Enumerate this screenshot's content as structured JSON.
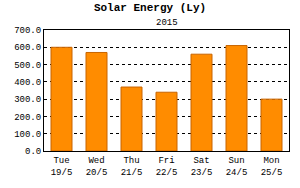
{
  "chart_data": {
    "type": "bar",
    "title": "Solar Energy (Ly)",
    "subtitle": "2015",
    "categories": [
      "Tue\n19/5",
      "Wed\n20/5",
      "Thu\n21/5",
      "Fri\n22/5",
      "Sat\n23/5",
      "Sun\n24/5",
      "Mon\n25/5"
    ],
    "values": [
      600,
      570,
      370,
      340,
      560,
      610,
      300
    ],
    "color": "#ff8c00",
    "ylim": [
      0,
      700
    ],
    "yticks": [
      {
        "value": 0,
        "label": "0.0"
      },
      {
        "value": 100,
        "label": "100.0"
      },
      {
        "value": 200,
        "label": "200.0"
      },
      {
        "value": 300,
        "label": "300.0"
      },
      {
        "value": 400,
        "label": "400.0"
      },
      {
        "value": 500,
        "label": "500.0"
      },
      {
        "value": 600,
        "label": "600.0"
      },
      {
        "value": 700,
        "label": "700.0"
      }
    ],
    "grid": true
  }
}
